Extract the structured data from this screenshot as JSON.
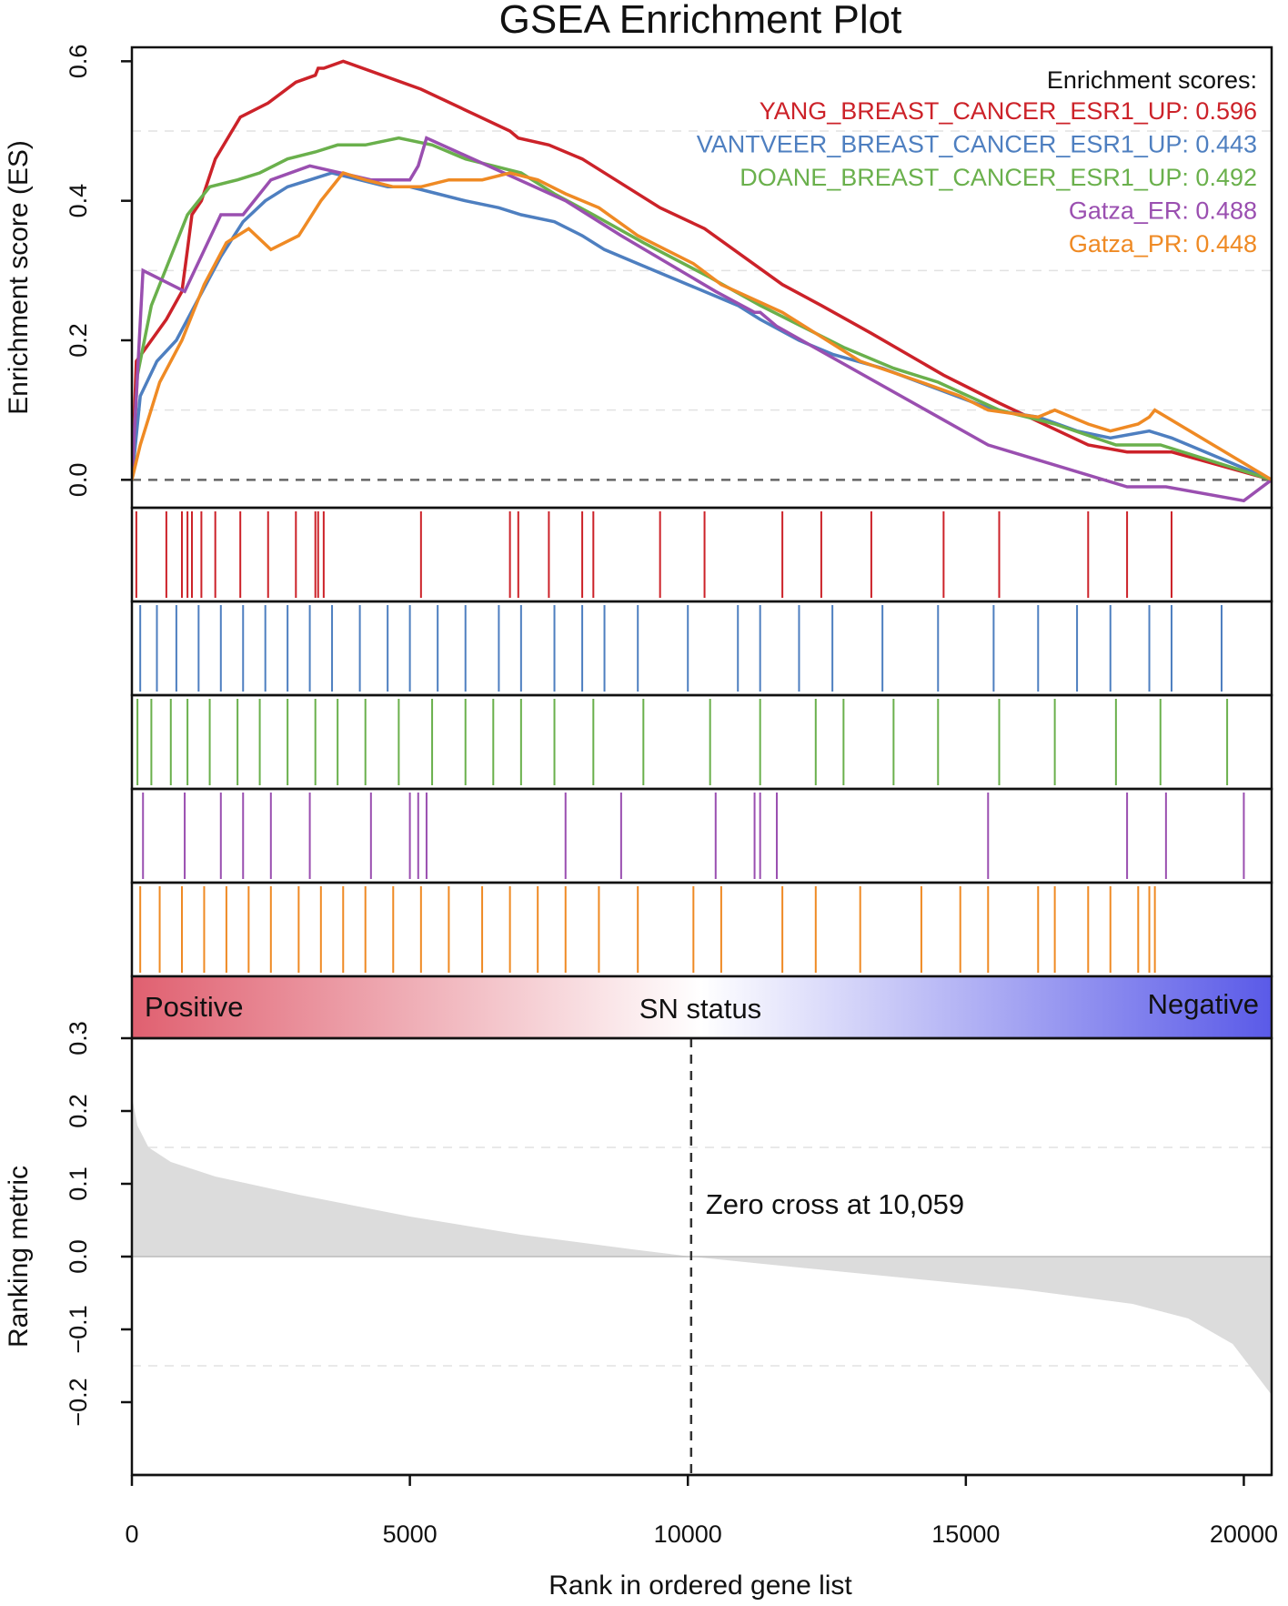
{
  "chart_data": {
    "type": "line",
    "title": "GSEA Enrichment Plot",
    "x_range": [
      0,
      20500
    ],
    "es_panel": {
      "ylabel": "Enrichment score (ES)",
      "ylim": [
        -0.04,
        0.62
      ],
      "yticks": [
        0.0,
        0.2,
        0.4,
        0.6
      ],
      "ytick_labels": [
        "0.0",
        "0.2",
        "0.4",
        "0.6"
      ],
      "dashed_gridlines": [
        0.1,
        0.3,
        0.5
      ],
      "legend_title": "Enrichment scores:",
      "legend_position": "top-right",
      "series": [
        {
          "name": "YANG_BREAST_CANCER_ESR1_UP",
          "score": "0.596",
          "color": "#cc2229",
          "hits": [
            80,
            620,
            900,
            1000,
            1080,
            1250,
            1500,
            1950,
            2450,
            2950,
            3300,
            3350,
            3450,
            5200,
            6800,
            6950,
            7500,
            8100,
            8300,
            9500,
            10300,
            11700,
            12400,
            13300,
            14600,
            15600,
            17200,
            17900,
            18700
          ],
          "points": [
            [
              0,
              0.0
            ],
            [
              80,
              0.17
            ],
            [
              620,
              0.23
            ],
            [
              900,
              0.27
            ],
            [
              1000,
              0.33
            ],
            [
              1080,
              0.38
            ],
            [
              1250,
              0.4
            ],
            [
              1500,
              0.46
            ],
            [
              1950,
              0.52
            ],
            [
              2450,
              0.54
            ],
            [
              2950,
              0.57
            ],
            [
              3300,
              0.58
            ],
            [
              3350,
              0.59
            ],
            [
              3450,
              0.59
            ],
            [
              3800,
              0.6
            ],
            [
              5200,
              0.56
            ],
            [
              6800,
              0.5
            ],
            [
              6950,
              0.49
            ],
            [
              7500,
              0.48
            ],
            [
              8100,
              0.46
            ],
            [
              8300,
              0.45
            ],
            [
              9500,
              0.39
            ],
            [
              10300,
              0.36
            ],
            [
              11700,
              0.28
            ],
            [
              12400,
              0.25
            ],
            [
              13300,
              0.21
            ],
            [
              14600,
              0.15
            ],
            [
              15600,
              0.11
            ],
            [
              17200,
              0.05
            ],
            [
              17900,
              0.04
            ],
            [
              18700,
              0.04
            ],
            [
              20500,
              0.0
            ]
          ]
        },
        {
          "name": "VANTVEER_BREAST_CANCER_ESR1_UP",
          "score": "0.443",
          "color": "#4e7fc0",
          "hits": [
            150,
            450,
            800,
            1200,
            1600,
            2000,
            2400,
            2800,
            3200,
            3600,
            4100,
            4600,
            5000,
            5500,
            6000,
            6600,
            7000,
            7600,
            8100,
            8500,
            9100,
            10000,
            10900,
            11300,
            12000,
            12600,
            13500,
            14500,
            15500,
            16300,
            17000,
            17600,
            18300,
            18700,
            19600
          ],
          "points": [
            [
              0,
              0.0
            ],
            [
              150,
              0.12
            ],
            [
              450,
              0.17
            ],
            [
              800,
              0.2
            ],
            [
              1200,
              0.26
            ],
            [
              1600,
              0.32
            ],
            [
              2000,
              0.37
            ],
            [
              2400,
              0.4
            ],
            [
              2800,
              0.42
            ],
            [
              3200,
              0.43
            ],
            [
              3600,
              0.44
            ],
            [
              4100,
              0.43
            ],
            [
              4600,
              0.42
            ],
            [
              5000,
              0.42
            ],
            [
              5500,
              0.41
            ],
            [
              6000,
              0.4
            ],
            [
              6600,
              0.39
            ],
            [
              7000,
              0.38
            ],
            [
              7600,
              0.37
            ],
            [
              8100,
              0.35
            ],
            [
              8500,
              0.33
            ],
            [
              9100,
              0.31
            ],
            [
              10000,
              0.28
            ],
            [
              10900,
              0.25
            ],
            [
              11300,
              0.23
            ],
            [
              12000,
              0.2
            ],
            [
              12600,
              0.18
            ],
            [
              13500,
              0.16
            ],
            [
              14500,
              0.13
            ],
            [
              15500,
              0.1
            ],
            [
              16300,
              0.09
            ],
            [
              17000,
              0.07
            ],
            [
              17600,
              0.06
            ],
            [
              18300,
              0.07
            ],
            [
              18700,
              0.06
            ],
            [
              19600,
              0.03
            ],
            [
              20500,
              0.0
            ]
          ]
        },
        {
          "name": "DOANE_BREAST_CANCER_ESR1_UP",
          "score": "0.492",
          "color": "#6ab04c",
          "hits": [
            100,
            350,
            700,
            1000,
            1400,
            1900,
            2300,
            2800,
            3300,
            3700,
            4200,
            4800,
            5400,
            6000,
            6500,
            7000,
            7600,
            8300,
            9200,
            10400,
            11300,
            12300,
            12800,
            13700,
            14500,
            15600,
            16600,
            17700,
            18500,
            19700
          ],
          "points": [
            [
              0,
              0.0
            ],
            [
              100,
              0.15
            ],
            [
              350,
              0.25
            ],
            [
              700,
              0.32
            ],
            [
              1000,
              0.38
            ],
            [
              1400,
              0.42
            ],
            [
              1900,
              0.43
            ],
            [
              2300,
              0.44
            ],
            [
              2800,
              0.46
            ],
            [
              3300,
              0.47
            ],
            [
              3700,
              0.48
            ],
            [
              4200,
              0.48
            ],
            [
              4800,
              0.49
            ],
            [
              5400,
              0.48
            ],
            [
              6000,
              0.46
            ],
            [
              6500,
              0.45
            ],
            [
              7000,
              0.44
            ],
            [
              7600,
              0.41
            ],
            [
              8300,
              0.38
            ],
            [
              9200,
              0.34
            ],
            [
              10400,
              0.29
            ],
            [
              11300,
              0.25
            ],
            [
              12300,
              0.21
            ],
            [
              12800,
              0.19
            ],
            [
              13700,
              0.16
            ],
            [
              14500,
              0.14
            ],
            [
              15600,
              0.1
            ],
            [
              16600,
              0.08
            ],
            [
              17700,
              0.05
            ],
            [
              18500,
              0.05
            ],
            [
              19700,
              0.02
            ],
            [
              20500,
              0.0
            ]
          ]
        },
        {
          "name": "Gatza_ER",
          "score": "0.488",
          "color": "#9a4fb0",
          "hits": [
            200,
            950,
            1600,
            2000,
            2500,
            3200,
            4300,
            5000,
            5150,
            5300,
            7800,
            8800,
            10500,
            11200,
            11300,
            11600,
            15400,
            17900,
            18600,
            20000
          ],
          "points": [
            [
              0,
              0.0
            ],
            [
              200,
              0.3
            ],
            [
              950,
              0.27
            ],
            [
              1600,
              0.38
            ],
            [
              2000,
              0.38
            ],
            [
              2500,
              0.43
            ],
            [
              3200,
              0.45
            ],
            [
              4300,
              0.43
            ],
            [
              5000,
              0.43
            ],
            [
              5150,
              0.45
            ],
            [
              5300,
              0.49
            ],
            [
              7800,
              0.4
            ],
            [
              8800,
              0.35
            ],
            [
              10500,
              0.27
            ],
            [
              11200,
              0.24
            ],
            [
              11300,
              0.24
            ],
            [
              11600,
              0.22
            ],
            [
              15400,
              0.05
            ],
            [
              17900,
              -0.01
            ],
            [
              18600,
              -0.01
            ],
            [
              20000,
              -0.03
            ],
            [
              20500,
              0.0
            ]
          ]
        },
        {
          "name": "Gatza_PR",
          "score": "0.448",
          "color": "#ef8a24",
          "hits": [
            150,
            500,
            900,
            1300,
            1700,
            2100,
            2500,
            3000,
            3400,
            3800,
            4200,
            4700,
            5200,
            5700,
            6300,
            6800,
            7300,
            7800,
            8400,
            9100,
            10100,
            10600,
            11700,
            12300,
            13100,
            14200,
            14900,
            15400,
            16300,
            16600,
            17200,
            17600,
            18100,
            18300,
            18400
          ],
          "points": [
            [
              0,
              0.0
            ],
            [
              150,
              0.05
            ],
            [
              500,
              0.14
            ],
            [
              900,
              0.2
            ],
            [
              1300,
              0.28
            ],
            [
              1700,
              0.34
            ],
            [
              2100,
              0.36
            ],
            [
              2500,
              0.33
            ],
            [
              3000,
              0.35
            ],
            [
              3400,
              0.4
            ],
            [
              3800,
              0.44
            ],
            [
              4200,
              0.43
            ],
            [
              4700,
              0.42
            ],
            [
              5200,
              0.42
            ],
            [
              5700,
              0.43
            ],
            [
              6300,
              0.43
            ],
            [
              6800,
              0.44
            ],
            [
              7300,
              0.43
            ],
            [
              7800,
              0.41
            ],
            [
              8400,
              0.39
            ],
            [
              9100,
              0.35
            ],
            [
              10100,
              0.31
            ],
            [
              10600,
              0.28
            ],
            [
              11700,
              0.24
            ],
            [
              12300,
              0.21
            ],
            [
              13100,
              0.17
            ],
            [
              14200,
              0.14
            ],
            [
              14900,
              0.12
            ],
            [
              15400,
              0.1
            ],
            [
              16300,
              0.09
            ],
            [
              16600,
              0.1
            ],
            [
              17200,
              0.08
            ],
            [
              17600,
              0.07
            ],
            [
              18100,
              0.08
            ],
            [
              18300,
              0.09
            ],
            [
              18400,
              0.1
            ],
            [
              20500,
              0.0
            ]
          ]
        }
      ]
    },
    "status_bar": {
      "left_label": "Positive",
      "center_label": "SN status",
      "right_label": "Negative",
      "colors": [
        "#e06070",
        "#ffffff",
        "#5a5ae8"
      ]
    },
    "ranking_panel": {
      "ylabel": "Ranking metric",
      "xlabel": "Rank in ordered gene list",
      "ylim": [
        -0.3,
        0.3
      ],
      "yticks": [
        -0.2,
        -0.1,
        0.0,
        0.1,
        0.2,
        0.3
      ],
      "ytick_labels": [
        "−0.2",
        "−0.1",
        "0.0",
        "0.1",
        "0.2",
        "0.3"
      ],
      "dashed_gridlines": [
        -0.15,
        0.15
      ],
      "xticks": [
        0,
        5000,
        10000,
        15000,
        20000
      ],
      "xtick_labels": [
        "0",
        "5000",
        "10000",
        "15000",
        "20000"
      ],
      "zero_cross": 10059,
      "zero_cross_label": "Zero cross at 10,059",
      "fill_color": "#dcdcdc",
      "curve": [
        [
          0,
          0.22
        ],
        [
          100,
          0.18
        ],
        [
          300,
          0.15
        ],
        [
          700,
          0.13
        ],
        [
          1500,
          0.11
        ],
        [
          3000,
          0.085
        ],
        [
          5000,
          0.055
        ],
        [
          7000,
          0.03
        ],
        [
          9000,
          0.01
        ],
        [
          10059,
          0.0
        ],
        [
          12000,
          -0.015
        ],
        [
          14000,
          -0.03
        ],
        [
          16000,
          -0.045
        ],
        [
          18000,
          -0.065
        ],
        [
          19000,
          -0.085
        ],
        [
          19800,
          -0.12
        ],
        [
          20200,
          -0.16
        ],
        [
          20500,
          -0.19
        ]
      ]
    }
  }
}
